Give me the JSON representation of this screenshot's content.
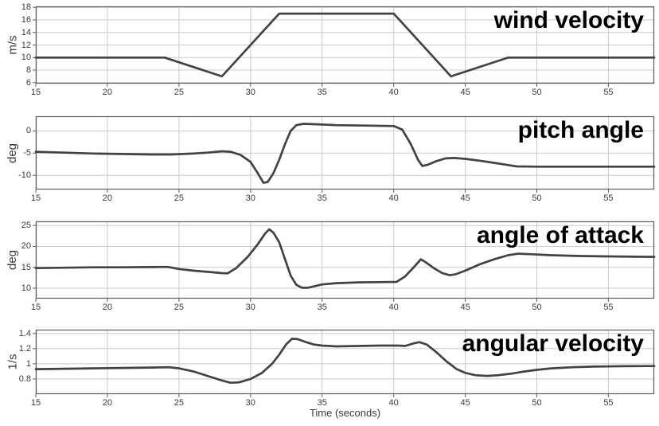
{
  "figure": {
    "xlabel": "Time (seconds)",
    "colors": {
      "background": "#ffffff",
      "line": "#424242",
      "grid": "#cbcbcb",
      "box": "#5c5c5c",
      "tick_text": "#3a3a3a",
      "title_text": "#000000"
    }
  },
  "chart_data": [
    {
      "type": "line",
      "title": "wind velocity",
      "ylabel": "m/s",
      "xlabel": "",
      "grid": true,
      "legend": "none",
      "xlim": [
        15,
        58.2
      ],
      "ylim": [
        5.85,
        18.15
      ],
      "xticks": [
        15,
        20,
        25,
        30,
        35,
        40,
        45,
        50,
        55
      ],
      "yticks": [
        6,
        8,
        10,
        12,
        14,
        16,
        18
      ],
      "x": [
        15,
        24,
        28,
        32,
        40,
        44,
        48,
        58.2
      ],
      "y": [
        10,
        10,
        7,
        17,
        17,
        7,
        10,
        10
      ]
    },
    {
      "type": "line",
      "title": "pitch angle",
      "ylabel": "deg",
      "xlabel": "",
      "grid": true,
      "legend": "none",
      "xlim": [
        15,
        58.2
      ],
      "ylim": [
        -13.2,
        3.3
      ],
      "xticks": [
        15,
        20,
        25,
        30,
        35,
        40,
        45,
        50,
        55
      ],
      "yticks": [
        0,
        -5,
        -10
      ],
      "x": [
        15,
        17,
        19,
        21,
        23,
        24.5,
        26,
        27,
        28,
        28.6,
        29.3,
        30,
        30.5,
        30.9,
        31.2,
        31.6,
        32,
        32.4,
        32.8,
        33.2,
        33.7,
        34.5,
        36,
        38,
        40,
        40.6,
        41.2,
        41.7,
        42,
        42.4,
        43,
        43.6,
        44.2,
        45,
        46,
        47,
        48,
        48.6,
        50,
        54,
        58.2
      ],
      "y": [
        -4.7,
        -4.9,
        -5.1,
        -5.2,
        -5.3,
        -5.3,
        -5.1,
        -4.9,
        -4.6,
        -4.7,
        -5.4,
        -7,
        -9.5,
        -11.7,
        -11.5,
        -9.5,
        -6.5,
        -3,
        0,
        1.3,
        1.6,
        1.5,
        1.3,
        1.2,
        1.1,
        0.3,
        -3,
        -6.5,
        -7.9,
        -7.6,
        -6.8,
        -6.2,
        -6.1,
        -6.3,
        -6.7,
        -7.2,
        -7.7,
        -8,
        -8.05,
        -8.05,
        -8.05
      ]
    },
    {
      "type": "line",
      "title": "angle of attack",
      "ylabel": "deg",
      "xlabel": "",
      "grid": true,
      "legend": "none",
      "xlim": [
        15,
        58.2
      ],
      "ylim": [
        7.5,
        26
      ],
      "xticks": [
        15,
        20,
        25,
        30,
        35,
        40,
        45,
        50,
        55
      ],
      "yticks": [
        10,
        15,
        20,
        25
      ],
      "x": [
        15,
        17,
        19,
        21,
        23,
        24.2,
        25,
        26,
        27,
        28,
        28.4,
        29,
        29.8,
        30.5,
        31,
        31.3,
        31.6,
        32,
        32.4,
        32.8,
        33.2,
        33.6,
        34,
        34.5,
        35,
        36,
        37.5,
        39,
        40.2,
        40.8,
        41.4,
        41.9,
        42.2,
        42.8,
        43.4,
        43.9,
        44.3,
        45,
        46,
        47,
        48,
        48.7,
        49.5,
        51,
        53,
        55,
        58.2
      ],
      "y": [
        14.8,
        14.9,
        15,
        15,
        15.05,
        15.1,
        14.6,
        14.2,
        13.9,
        13.6,
        13.55,
        14.8,
        17.5,
        20.5,
        23,
        24.1,
        23.3,
        21,
        17,
        13,
        10.8,
        10.1,
        10.1,
        10.5,
        10.9,
        11.2,
        11.4,
        11.45,
        11.5,
        12.8,
        15,
        16.9,
        16.3,
        14.8,
        13.6,
        13.1,
        13.3,
        14.2,
        15.7,
        16.9,
        17.9,
        18.25,
        18.15,
        17.9,
        17.7,
        17.6,
        17.5
      ]
    },
    {
      "type": "line",
      "title": "angular velocity",
      "ylabel": "1/s",
      "xlabel": "Time (seconds)",
      "grid": true,
      "legend": "none",
      "xlim": [
        15,
        58.2
      ],
      "ylim": [
        0.6,
        1.45
      ],
      "xticks": [
        15,
        20,
        25,
        30,
        35,
        40,
        45,
        50,
        55
      ],
      "yticks": [
        0.8,
        1,
        1.2,
        1.4
      ],
      "x": [
        15,
        17,
        19,
        21,
        23,
        24.3,
        25,
        26,
        27,
        28,
        28.6,
        29.2,
        30,
        30.8,
        31.5,
        32,
        32.5,
        32.9,
        33.3,
        33.8,
        34.4,
        35,
        36,
        37.5,
        39,
        40.3,
        40.8,
        41.4,
        41.8,
        42.3,
        43,
        43.7,
        44.4,
        45,
        45.7,
        46.5,
        47.3,
        48.2,
        49,
        50,
        51,
        52.5,
        54,
        56,
        58.2
      ],
      "y": [
        0.93,
        0.935,
        0.94,
        0.945,
        0.95,
        0.955,
        0.94,
        0.9,
        0.84,
        0.78,
        0.75,
        0.755,
        0.8,
        0.88,
        1.0,
        1.12,
        1.26,
        1.33,
        1.325,
        1.29,
        1.255,
        1.24,
        1.23,
        1.235,
        1.24,
        1.24,
        1.235,
        1.27,
        1.285,
        1.255,
        1.15,
        1.03,
        0.93,
        0.88,
        0.85,
        0.84,
        0.85,
        0.87,
        0.895,
        0.92,
        0.94,
        0.955,
        0.963,
        0.968,
        0.97
      ]
    }
  ]
}
